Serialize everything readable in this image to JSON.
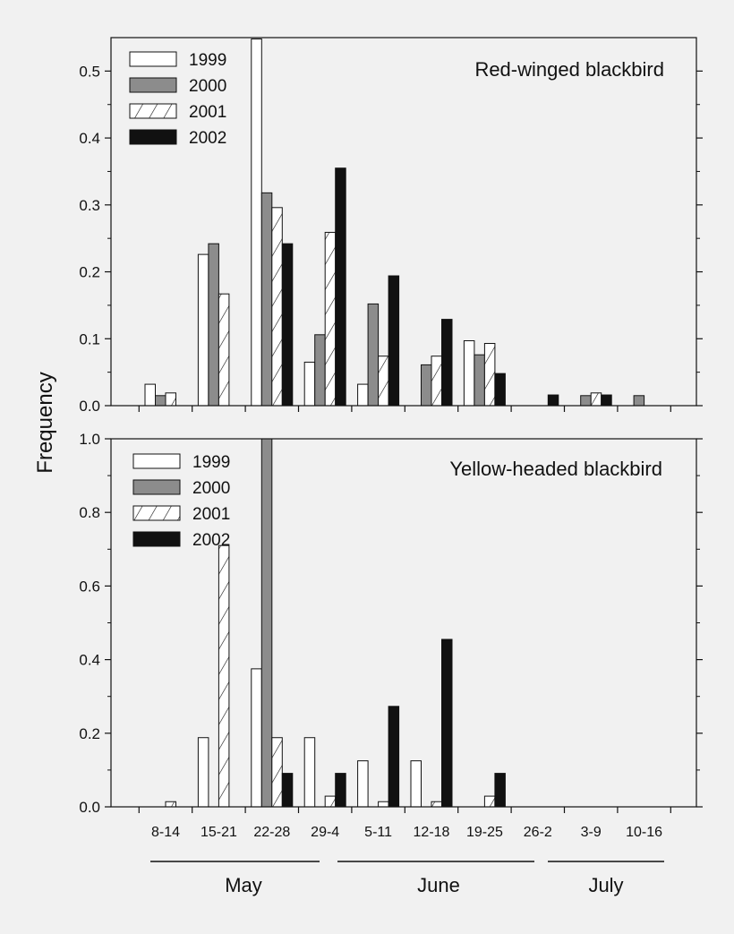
{
  "colors": {
    "background": "#f1f1f1",
    "series_1999": "#ffffff",
    "series_2000": "#8c8c8c",
    "series_2001": "#ffffff",
    "series_2002": "#111111",
    "stroke": "#111111"
  },
  "figure": {
    "ylabel": "Frequency",
    "months": [
      "May",
      "June",
      "July"
    ]
  },
  "chart_data": [
    {
      "type": "bar",
      "title": "Red-winged blackbird",
      "ylabel": "Frequency",
      "xlabel": "",
      "ylim": [
        0,
        0.55
      ],
      "yticks": [
        0.0,
        0.1,
        0.2,
        0.3,
        0.4,
        0.5
      ],
      "ytick_labels": [
        "0.0",
        "0.1",
        "0.2",
        "0.3",
        "0.4",
        "0.5"
      ],
      "grid": false,
      "legend": "top-left",
      "categories": [
        "8-14",
        "15-21",
        "22-28",
        "29-4",
        "5-11",
        "12-18",
        "19-25",
        "26-2",
        "3-9",
        "10-16"
      ],
      "series": [
        {
          "name": "1999",
          "pattern": "open",
          "values": [
            0.032,
            0.226,
            0.548,
            0.065,
            0.032,
            0,
            0.097,
            0,
            0,
            0
          ]
        },
        {
          "name": "2000",
          "pattern": "gray",
          "values": [
            0.015,
            0.242,
            0.318,
            0.106,
            0.152,
            0.061,
            0.076,
            0,
            0.015,
            0.015
          ]
        },
        {
          "name": "2001",
          "pattern": "hatched",
          "values": [
            0.019,
            0.167,
            0.296,
            0.259,
            0.074,
            0.074,
            0.093,
            0,
            0.019,
            0
          ]
        },
        {
          "name": "2002",
          "pattern": "black",
          "values": [
            0,
            0,
            0.242,
            0.355,
            0.194,
            0.129,
            0.048,
            0.016,
            0.016,
            0
          ]
        }
      ]
    },
    {
      "type": "bar",
      "title": "Yellow-headed blackbird",
      "ylabel": "Frequency",
      "xlabel": "",
      "ylim": [
        0,
        1.0
      ],
      "yticks": [
        0.0,
        0.2,
        0.4,
        0.6,
        0.8,
        1.0
      ],
      "ytick_labels": [
        "0.0",
        "0.2",
        "0.4",
        "0.6",
        "0.8",
        "1.0"
      ],
      "grid": false,
      "legend": "top-left",
      "categories": [
        "8-14",
        "15-21",
        "22-28",
        "29-4",
        "5-11",
        "12-18",
        "19-25",
        "26-2",
        "3-9",
        "10-16"
      ],
      "series": [
        {
          "name": "1999",
          "pattern": "open",
          "values": [
            0,
            0.188,
            0.375,
            0.188,
            0.125,
            0.125,
            0,
            0,
            0,
            0
          ]
        },
        {
          "name": "2000",
          "pattern": "gray",
          "values": [
            0,
            0,
            1.0,
            0,
            0,
            0,
            0,
            0,
            0,
            0
          ]
        },
        {
          "name": "2001",
          "pattern": "hatched",
          "values": [
            0.014,
            0.71,
            0.188,
            0.029,
            0.014,
            0.014,
            0.029,
            0,
            0,
            0
          ]
        },
        {
          "name": "2002",
          "pattern": "black",
          "values": [
            0,
            0,
            0.091,
            0.091,
            0.273,
            0.455,
            0.091,
            0,
            0,
            0
          ]
        }
      ]
    }
  ]
}
